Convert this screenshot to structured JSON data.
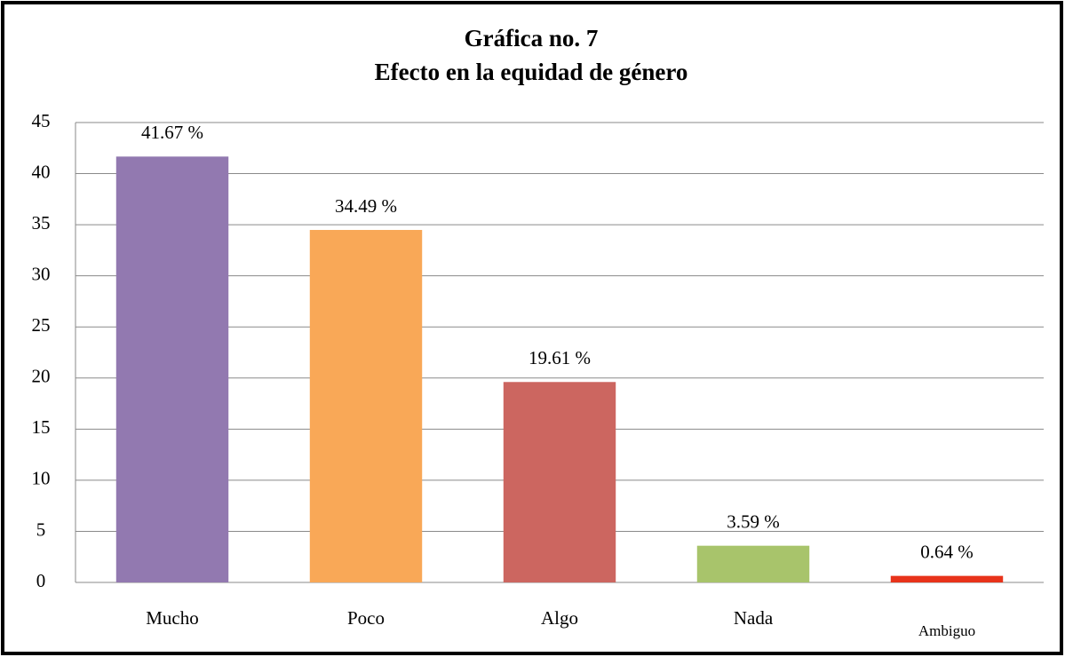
{
  "chart_data": {
    "type": "bar",
    "title": "Gráfica no. 7",
    "subtitle": "Efecto en la equidad de género",
    "categories": [
      "Mucho",
      "Poco",
      "Algo",
      "Nada",
      "Ambiguo"
    ],
    "values": [
      41.67,
      34.49,
      19.61,
      3.59,
      0.64
    ],
    "value_labels": [
      "41.67 %",
      "34.49 %",
      "19.61 %",
      "3.59 %",
      "0.64 %"
    ],
    "colors": [
      "#9279b0",
      "#f9a857",
      "#cc6660",
      "#a8c46b",
      "#e8331a"
    ],
    "ylim": [
      0,
      45
    ],
    "yticks": [
      0,
      5,
      10,
      15,
      20,
      25,
      30,
      35,
      40,
      45
    ],
    "grid": true
  }
}
